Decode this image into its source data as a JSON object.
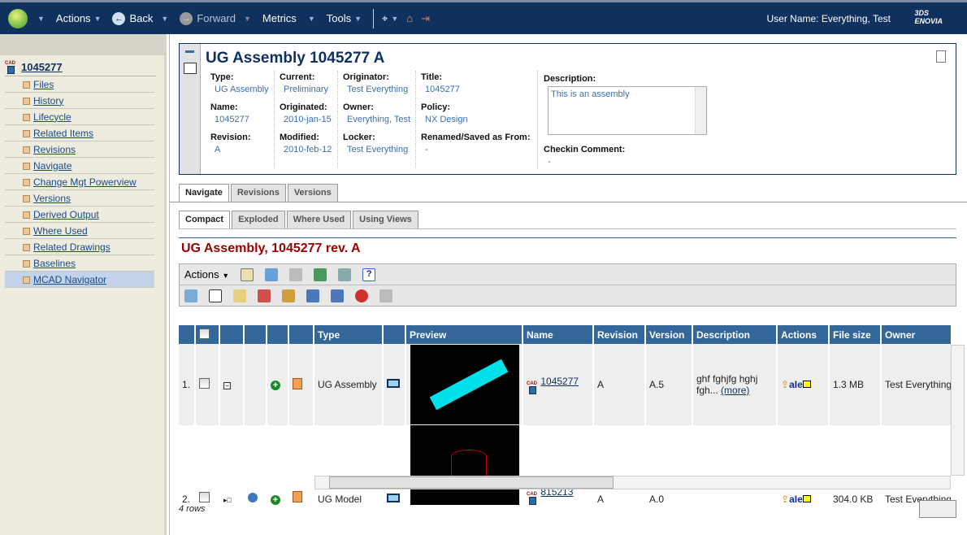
{
  "topbar": {
    "menus": [
      "Actions",
      "Back",
      "Forward",
      "Metrics",
      "Tools"
    ],
    "user": "User Name: Everything, Test",
    "brand": "3DS ENOVIA"
  },
  "sidebar": {
    "root": "1045277",
    "items": [
      "Files",
      "History",
      "Lifecycle",
      "Related Items",
      "Revisions",
      "Navigate",
      "Change Mgt Powerview",
      "Versions",
      "Derived Output",
      "Where Used",
      "Related Drawings",
      "Baselines",
      "MCAD Navigator"
    ],
    "selected": "MCAD Navigator"
  },
  "header": {
    "title": "UG Assembly 1045277 A",
    "fields": [
      [
        {
          "label": "Type:",
          "value": "UG Assembly"
        },
        {
          "label": "Name:",
          "value": "1045277"
        },
        {
          "label": "Revision:",
          "value": "A"
        }
      ],
      [
        {
          "label": "Current:",
          "value": "Preliminary"
        },
        {
          "label": "Originated:",
          "value": "2010-jan-15"
        },
        {
          "label": "Modified:",
          "value": "2010-feb-12"
        }
      ],
      [
        {
          "label": "Originator:",
          "value": "Test Everything"
        },
        {
          "label": "Owner:",
          "value": "Everything, Test"
        },
        {
          "label": "Locker:",
          "value": "Test Everything"
        }
      ],
      [
        {
          "label": "Title:",
          "value": "1045277"
        },
        {
          "label": "Policy:",
          "value": "NX Design"
        },
        {
          "label": "Renamed/Saved as From:",
          "value": "-"
        }
      ]
    ],
    "description_label": "Description:",
    "description": "This is an assembly",
    "checkin_label": "Checkin Comment:",
    "checkin": "-"
  },
  "tabs": [
    "Navigate",
    "Revisions",
    "Versions"
  ],
  "subtabs": [
    "Compact",
    "Exploded",
    "Where Used",
    "Using Views"
  ],
  "page_title": "UG Assembly, 1045277 rev. A",
  "toolbar": {
    "actions": "Actions"
  },
  "table": {
    "columns": [
      "",
      "",
      "",
      "",
      "",
      "",
      "Type",
      "",
      "Preview",
      "Name",
      "Revision",
      "Version",
      "Description",
      "Actions",
      "File size",
      "Owner"
    ],
    "rows": [
      {
        "num": "1.",
        "type": "UG Assembly",
        "name": "1045277",
        "revision": "A",
        "version": "A.5",
        "description": "ghf fghjfg hghj",
        "description2": "fgh...",
        "more": "(more)",
        "filesize": "1.3 MB",
        "owner": "Test Everything"
      },
      {
        "num": "2.",
        "type": "UG Model",
        "name": "815213",
        "revision": "A",
        "version": "A.0",
        "description": "",
        "filesize": "304.0 KB",
        "owner": "Test Everything"
      }
    ]
  },
  "footer": {
    "rows": "4 rows"
  },
  "colors": {
    "topbar": "#10305e",
    "table_header": "#336699",
    "title": "#990000"
  }
}
